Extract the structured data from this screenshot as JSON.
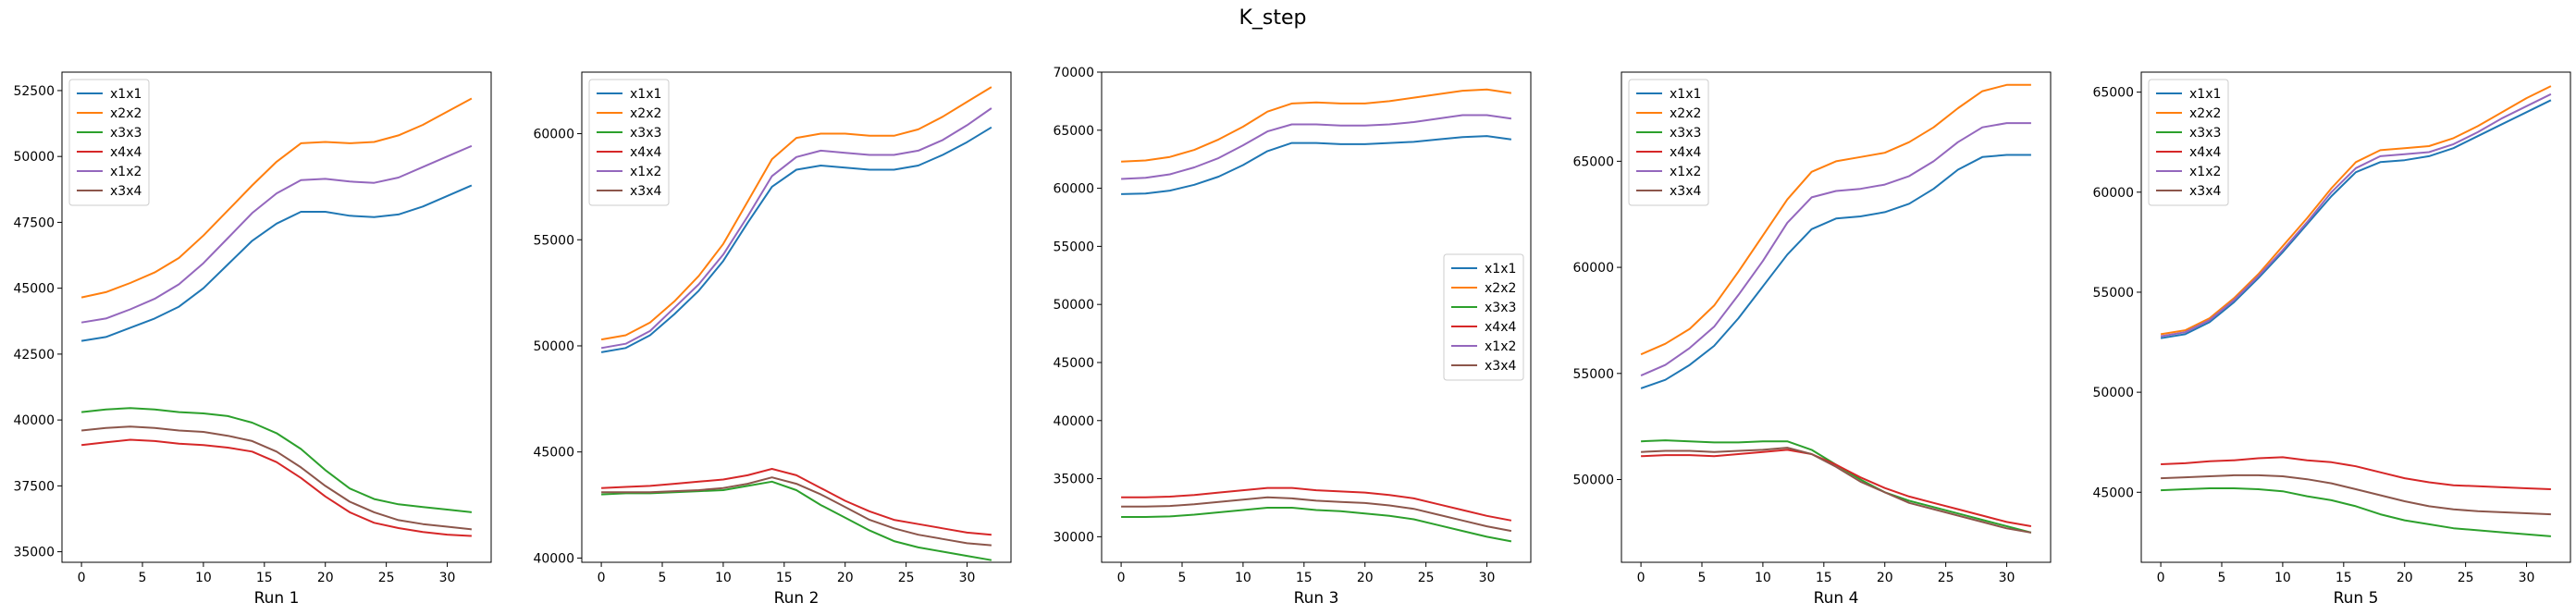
{
  "figure": {
    "title": "K_step"
  },
  "colors": {
    "x1x1": "#1f77b4",
    "x2x2": "#ff7f0e",
    "x3x3": "#2ca02c",
    "x4x4": "#d62728",
    "x1x2": "#9467bd",
    "x3x4": "#8c564b"
  },
  "chart_data": [
    {
      "type": "line",
      "xlabel": "Run 1",
      "ylabel": "",
      "xlim": [
        -1.6,
        33.6
      ],
      "ylim": [
        34600,
        53200
      ],
      "xticks": [
        0,
        5,
        10,
        15,
        20,
        25,
        30
      ],
      "yticks": [
        35000,
        37500,
        40000,
        42500,
        45000,
        47500,
        50000,
        52500
      ],
      "ytick_labels": [
        "35000",
        "37500",
        "40000",
        "42500",
        "45000",
        "47500",
        "50000",
        "52500"
      ],
      "legend": "upper left",
      "x": [
        0,
        2,
        4,
        6,
        8,
        10,
        12,
        14,
        16,
        18,
        20,
        22,
        24,
        26,
        28,
        30,
        32
      ],
      "series": [
        {
          "name": "x1x1",
          "values": [
            43000,
            43150,
            43500,
            43850,
            44300,
            45000,
            45900,
            46800,
            47450,
            47900,
            47900,
            47750,
            47700,
            47800,
            48100,
            48500,
            48900
          ]
        },
        {
          "name": "x2x2",
          "values": [
            44650,
            44850,
            45200,
            45600,
            46150,
            47000,
            47950,
            48900,
            49800,
            50500,
            50550,
            50500,
            50550,
            50800,
            51200,
            51700,
            52200
          ]
        },
        {
          "name": "x3x3",
          "values": [
            40300,
            40400,
            40450,
            40400,
            40300,
            40250,
            40150,
            39900,
            39500,
            38900,
            38100,
            37400,
            37000,
            36800,
            36700,
            36600,
            36500
          ]
        },
        {
          "name": "x4x4",
          "values": [
            39050,
            39150,
            39250,
            39200,
            39100,
            39050,
            38950,
            38800,
            38400,
            37800,
            37100,
            36500,
            36100,
            35900,
            35750,
            35650,
            35600
          ]
        },
        {
          "name": "x1x2",
          "values": [
            43700,
            43850,
            44200,
            44600,
            45150,
            45950,
            46900,
            47850,
            48600,
            49100,
            49150,
            49050,
            49000,
            49200,
            49600,
            50000,
            50400
          ]
        },
        {
          "name": "x3x4",
          "values": [
            39600,
            39700,
            39750,
            39700,
            39600,
            39550,
            39400,
            39200,
            38800,
            38200,
            37500,
            36900,
            36500,
            36200,
            36050,
            35950,
            35850
          ]
        }
      ]
    },
    {
      "type": "line",
      "xlabel": "Run 2",
      "ylabel": "",
      "xlim": [
        -1.6,
        33.6
      ],
      "ylim": [
        39800,
        62900
      ],
      "xticks": [
        0,
        5,
        10,
        15,
        20,
        25,
        30
      ],
      "yticks": [
        40000,
        45000,
        50000,
        55000,
        60000
      ],
      "ytick_labels": [
        "40000",
        "45000",
        "50000",
        "55000",
        "60000"
      ],
      "legend": "upper left",
      "x": [
        0,
        2,
        4,
        6,
        8,
        10,
        12,
        14,
        16,
        18,
        20,
        22,
        24,
        26,
        28,
        30,
        32
      ],
      "series": [
        {
          "name": "x1x1",
          "values": [
            49700,
            49900,
            50500,
            51500,
            52600,
            54000,
            55800,
            57500,
            58300,
            58500,
            58400,
            58300,
            58300,
            58500,
            59000,
            59600,
            60300
          ]
        },
        {
          "name": "x2x2",
          "values": [
            50300,
            50500,
            51100,
            52100,
            53300,
            54800,
            56800,
            58800,
            59800,
            60000,
            60000,
            59900,
            59900,
            60200,
            60800,
            61500,
            62200
          ]
        },
        {
          "name": "x3x3",
          "values": [
            43000,
            43050,
            43050,
            43100,
            43150,
            43200,
            43400,
            43600,
            43200,
            42500,
            41900,
            41300,
            40800,
            40500,
            40300,
            40100,
            39900
          ]
        },
        {
          "name": "x4x4",
          "values": [
            43300,
            43350,
            43400,
            43500,
            43600,
            43700,
            43900,
            44200,
            43900,
            43300,
            42700,
            42200,
            41800,
            41600,
            41400,
            41200,
            41100
          ]
        },
        {
          "name": "x1x2",
          "values": [
            49900,
            50100,
            50700,
            51800,
            52900,
            54300,
            56100,
            58000,
            58900,
            59200,
            59100,
            59000,
            59000,
            59200,
            59700,
            60400,
            61200
          ]
        },
        {
          "name": "x3x4",
          "values": [
            43100,
            43100,
            43100,
            43150,
            43200,
            43300,
            43500,
            43800,
            43500,
            43000,
            42400,
            41800,
            41400,
            41100,
            40900,
            40700,
            40600
          ]
        }
      ]
    },
    {
      "type": "line",
      "xlabel": "Run 3",
      "ylabel": "",
      "xlim": [
        -1.6,
        33.6
      ],
      "ylim": [
        27800,
        70000
      ],
      "xticks": [
        0,
        5,
        10,
        15,
        20,
        25,
        30
      ],
      "yticks": [
        30000,
        35000,
        40000,
        45000,
        50000,
        55000,
        60000,
        65000,
        70000
      ],
      "ytick_labels": [
        "30000",
        "35000",
        "40000",
        "45000",
        "50000",
        "55000",
        "60000",
        "65000",
        "70000"
      ],
      "legend": "center right",
      "x": [
        0,
        2,
        4,
        6,
        8,
        10,
        12,
        14,
        16,
        18,
        20,
        22,
        24,
        26,
        28,
        30,
        32
      ],
      "series": [
        {
          "name": "x1x1",
          "values": [
            59500,
            59550,
            59800,
            60300,
            61000,
            62000,
            63200,
            63900,
            63900,
            63800,
            63800,
            63900,
            64000,
            64200,
            64400,
            64500,
            64200
          ]
        },
        {
          "name": "x2x2",
          "values": [
            62300,
            62400,
            62700,
            63300,
            64200,
            65300,
            66600,
            67300,
            67400,
            67300,
            67300,
            67500,
            67800,
            68100,
            68400,
            68500,
            68200
          ]
        },
        {
          "name": "x3x3",
          "values": [
            31700,
            31700,
            31750,
            31900,
            32100,
            32300,
            32500,
            32500,
            32300,
            32200,
            32000,
            31800,
            31500,
            31000,
            30500,
            30000,
            29600
          ]
        },
        {
          "name": "x4x4",
          "values": [
            33400,
            33400,
            33450,
            33600,
            33800,
            34000,
            34200,
            34200,
            34000,
            33900,
            33800,
            33600,
            33300,
            32800,
            32300,
            31800,
            31400
          ]
        },
        {
          "name": "x1x2",
          "values": [
            60800,
            60900,
            61200,
            61800,
            62600,
            63700,
            64900,
            65500,
            65500,
            65400,
            65400,
            65500,
            65700,
            66000,
            66300,
            66300,
            66000
          ]
        },
        {
          "name": "x3x4",
          "values": [
            32600,
            32600,
            32650,
            32800,
            33000,
            33200,
            33400,
            33300,
            33100,
            33000,
            32900,
            32700,
            32400,
            31900,
            31400,
            30900,
            30500
          ]
        }
      ]
    },
    {
      "type": "line",
      "xlabel": "Run 4",
      "ylabel": "",
      "xlim": [
        -1.6,
        33.6
      ],
      "ylim": [
        46100,
        69200
      ],
      "xticks": [
        0,
        5,
        10,
        15,
        20,
        25,
        30
      ],
      "yticks": [
        50000,
        55000,
        60000,
        65000
      ],
      "ytick_labels": [
        "50000",
        "55000",
        "60000",
        "65000"
      ],
      "legend": "upper left",
      "x": [
        0,
        2,
        4,
        6,
        8,
        10,
        12,
        14,
        16,
        18,
        20,
        22,
        24,
        26,
        28,
        30,
        32
      ],
      "series": [
        {
          "name": "x1x1",
          "values": [
            54300,
            54700,
            55400,
            56300,
            57600,
            59100,
            60600,
            61800,
            62300,
            62400,
            62600,
            63000,
            63700,
            64600,
            65200,
            65300,
            65300
          ]
        },
        {
          "name": "x2x2",
          "values": [
            55900,
            56400,
            57100,
            58200,
            59800,
            61500,
            63200,
            64500,
            65000,
            65200,
            65400,
            65900,
            66600,
            67500,
            68300,
            68600,
            68600
          ]
        },
        {
          "name": "x3x3",
          "values": [
            51800,
            51850,
            51800,
            51750,
            51750,
            51800,
            51800,
            51400,
            50700,
            50000,
            49400,
            49000,
            48700,
            48400,
            48100,
            47800,
            47500
          ]
        },
        {
          "name": "x4x4",
          "values": [
            51100,
            51150,
            51150,
            51100,
            51200,
            51300,
            51400,
            51200,
            50700,
            50100,
            49600,
            49200,
            48900,
            48600,
            48300,
            48000,
            47800
          ]
        },
        {
          "name": "x1x2",
          "values": [
            54900,
            55400,
            56200,
            57200,
            58700,
            60300,
            62100,
            63300,
            63600,
            63700,
            63900,
            64300,
            65000,
            65900,
            66600,
            66800,
            66800
          ]
        },
        {
          "name": "x3x4",
          "values": [
            51300,
            51350,
            51350,
            51300,
            51350,
            51400,
            51500,
            51200,
            50600,
            49900,
            49400,
            48900,
            48600,
            48300,
            48000,
            47700,
            47500
          ]
        }
      ]
    },
    {
      "type": "line",
      "xlabel": "Run 5",
      "ylabel": "",
      "xlim": [
        -1.6,
        33.6
      ],
      "ylim": [
        41500,
        66000
      ],
      "xticks": [
        0,
        5,
        10,
        15,
        20,
        25,
        30
      ],
      "yticks": [
        45000,
        50000,
        55000,
        60000,
        65000
      ],
      "ytick_labels": [
        "45000",
        "50000",
        "55000",
        "60000",
        "65000"
      ],
      "legend": "upper left",
      "x": [
        0,
        2,
        4,
        6,
        8,
        10,
        12,
        14,
        16,
        18,
        20,
        22,
        24,
        26,
        28,
        30,
        32
      ],
      "series": [
        {
          "name": "x1x1",
          "values": [
            52700,
            52900,
            53500,
            54500,
            55700,
            57000,
            58400,
            59800,
            61000,
            61500,
            61600,
            61800,
            62200,
            62800,
            63400,
            64000,
            64600
          ]
        },
        {
          "name": "x2x2",
          "values": [
            52900,
            53100,
            53700,
            54700,
            55900,
            57300,
            58700,
            60200,
            61500,
            62100,
            62200,
            62300,
            62700,
            63300,
            64000,
            64700,
            65300
          ]
        },
        {
          "name": "x3x3",
          "values": [
            45100,
            45150,
            45200,
            45200,
            45150,
            45050,
            44800,
            44600,
            44300,
            43900,
            43600,
            43400,
            43200,
            43100,
            43000,
            42900,
            42800
          ]
        },
        {
          "name": "x4x4",
          "values": [
            46400,
            46450,
            46550,
            46600,
            46700,
            46750,
            46600,
            46500,
            46300,
            46000,
            45700,
            45500,
            45350,
            45300,
            45250,
            45200,
            45150
          ]
        },
        {
          "name": "x1x2",
          "values": [
            52800,
            53000,
            53600,
            54600,
            55800,
            57100,
            58500,
            60000,
            61200,
            61800,
            61900,
            62000,
            62400,
            63000,
            63700,
            64300,
            64900
          ]
        },
        {
          "name": "x3x4",
          "values": [
            45700,
            45750,
            45800,
            45850,
            45850,
            45800,
            45650,
            45450,
            45150,
            44850,
            44550,
            44300,
            44150,
            44050,
            44000,
            43950,
            43900
          ]
        }
      ]
    }
  ]
}
